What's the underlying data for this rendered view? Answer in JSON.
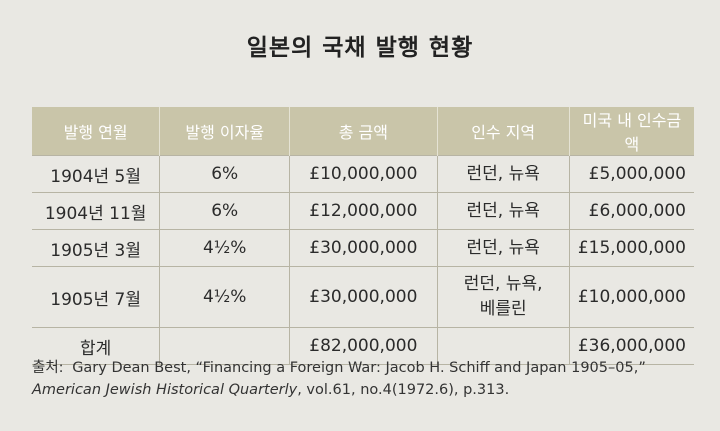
{
  "title": "일본의 국채 발행 현황",
  "table": {
    "headers": [
      "발행 연월",
      "발행 이자율",
      "총 금액",
      "인수 지역",
      "미국 내 인수금액"
    ],
    "rows": [
      {
        "date": "1904년 5월",
        "rate": "6%",
        "total": "£10,000,000",
        "region_line1": "런던, 뉴욕",
        "region_line2": "",
        "us_amount": "£5,000,000"
      },
      {
        "date": "1904년 11월",
        "rate": "6%",
        "total": "£12,000,000",
        "region_line1": "런던, 뉴욕",
        "region_line2": "",
        "us_amount": "£6,000,000"
      },
      {
        "date": "1905년 3월",
        "rate": "4½%",
        "total": "£30,000,000",
        "region_line1": "런던, 뉴욕",
        "region_line2": "",
        "us_amount": "£15,000,000"
      },
      {
        "date": "1905년 7월",
        "rate": "4½%",
        "total": "£30,000,000",
        "region_line1": "런던, 뉴욕,",
        "region_line2": "베를린",
        "us_amount": "£10,000,000"
      }
    ],
    "total_row": {
      "label": "합계",
      "total": "£82,000,000",
      "us_amount": "£36,000,000"
    }
  },
  "source": {
    "label": "출처:",
    "text_plain": "Gary Dean Best, “Financing a Foreign War: Jacob H. Schiff and Japan 1905–05,”",
    "journal": "American Jewish Historical Quarterly",
    "details": ", vol.61, no.4(1972.6), p.313."
  }
}
